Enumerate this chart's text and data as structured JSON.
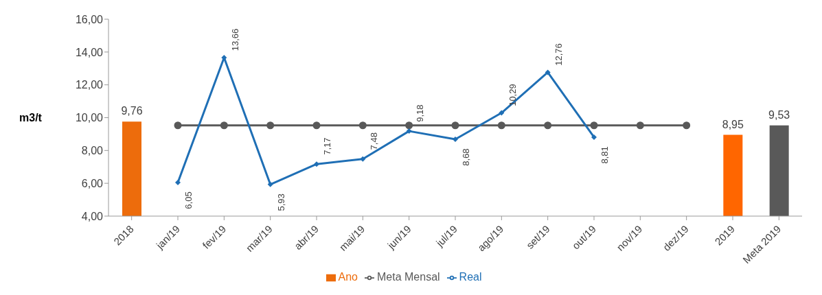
{
  "chart_data": {
    "type": "bar",
    "ylabel": "m3/t",
    "categories": [
      "2018",
      "jan/19",
      "fev/19",
      "mar/19",
      "abr/19",
      "mai/19",
      "jun/19",
      "jul/19",
      "ago/19",
      "set/19",
      "out/19",
      "nov/19",
      "dez/19",
      "2019",
      "Meta 2019"
    ],
    "series": [
      {
        "name": "Ano",
        "color": "#ed6c0c",
        "colors": [
          "#ed6c0c",
          null,
          null,
          null,
          null,
          null,
          null,
          null,
          null,
          null,
          null,
          null,
          null,
          "#ff6600",
          "#595959"
        ],
        "values": [
          9.76,
          null,
          null,
          null,
          null,
          null,
          null,
          null,
          null,
          null,
          null,
          null,
          null,
          8.95,
          9.53
        ],
        "value_labels": [
          "9,76",
          null,
          null,
          null,
          null,
          null,
          null,
          null,
          null,
          null,
          null,
          null,
          null,
          "8,95",
          "9,53"
        ]
      },
      {
        "name": "Meta Mensal",
        "type": "line",
        "color": "#595959",
        "marker": "circle",
        "values": [
          null,
          9.53,
          9.53,
          9.53,
          9.53,
          9.53,
          9.53,
          9.53,
          9.53,
          9.53,
          9.53,
          9.53,
          9.53,
          null,
          null
        ]
      },
      {
        "name": "Real",
        "type": "line",
        "color": "#1f6fb5",
        "marker": "diamond",
        "values": [
          null,
          6.05,
          13.66,
          5.93,
          7.17,
          7.48,
          9.18,
          8.68,
          10.29,
          12.76,
          8.81,
          null,
          null,
          null,
          null
        ],
        "value_labels": [
          null,
          "6,05",
          "13,66",
          "5,93",
          "7,17",
          "7,48",
          "9,18",
          "8,68",
          "10,29",
          "12,76",
          "8,81",
          null,
          null,
          null,
          null
        ]
      }
    ],
    "ylim": [
      4,
      16
    ],
    "yticks": [
      {
        "value": 4,
        "label": "4,00"
      },
      {
        "value": 6,
        "label": "6,00"
      },
      {
        "value": 8,
        "label": "8,00"
      },
      {
        "value": 10,
        "label": "10,00"
      },
      {
        "value": 12,
        "label": "12,00"
      },
      {
        "value": 14,
        "label": "14,00"
      },
      {
        "value": 16,
        "label": "16,00"
      }
    ],
    "legend": "bottom"
  }
}
